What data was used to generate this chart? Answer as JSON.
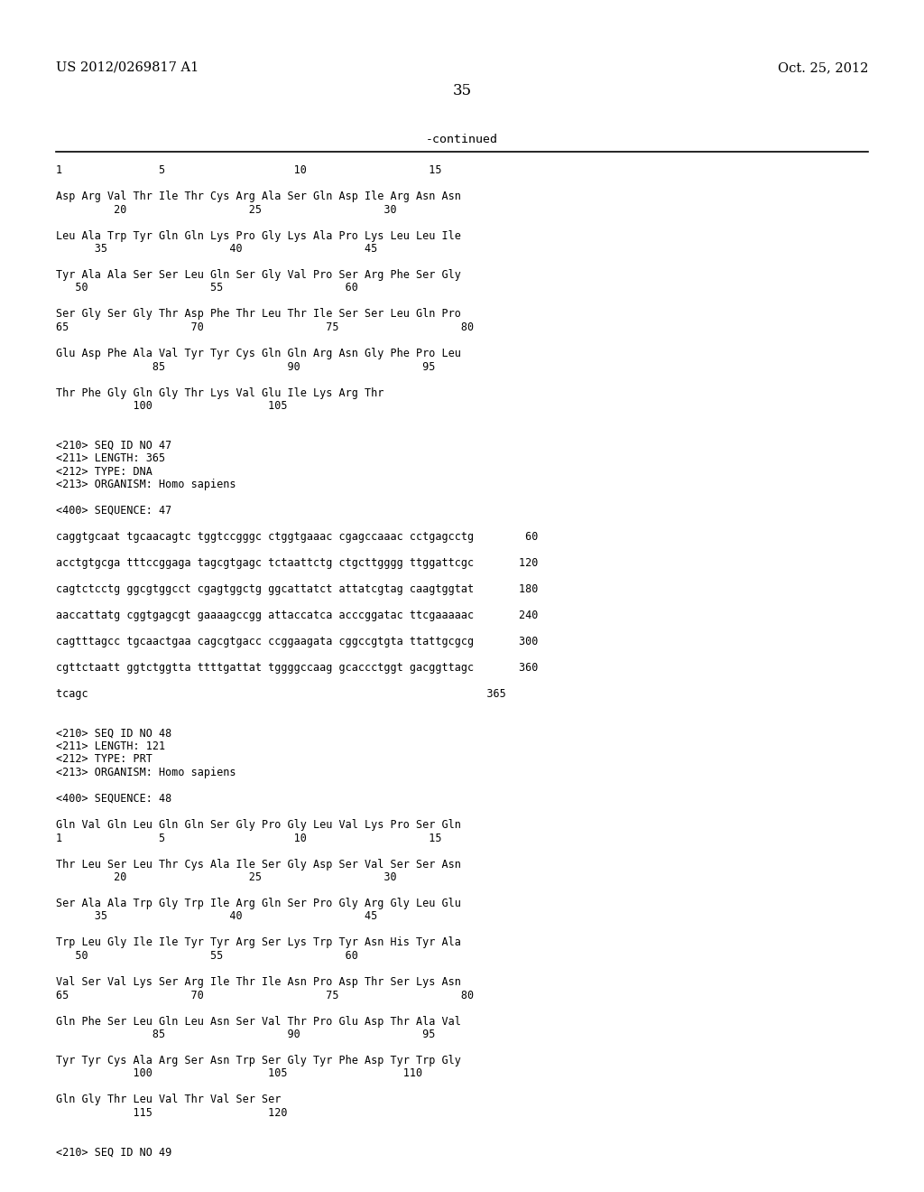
{
  "header_left": "US 2012/0269817 A1",
  "header_right": "Oct. 25, 2012",
  "page_number": "35",
  "continued_label": "-continued",
  "background_color": "#ffffff",
  "content_lines": [
    "1               5                    10                   15",
    "",
    "Asp Arg Val Thr Ile Thr Cys Arg Ala Ser Gln Asp Ile Arg Asn Asn",
    "         20                   25                   30",
    "",
    "Leu Ala Trp Tyr Gln Gln Lys Pro Gly Lys Ala Pro Lys Leu Leu Ile",
    "      35                   40                   45",
    "",
    "Tyr Ala Ala Ser Ser Leu Gln Ser Gly Val Pro Ser Arg Phe Ser Gly",
    "   50                   55                   60",
    "",
    "Ser Gly Ser Gly Thr Asp Phe Thr Leu Thr Ile Ser Ser Leu Gln Pro",
    "65                   70                   75                   80",
    "",
    "Glu Asp Phe Ala Val Tyr Tyr Cys Gln Gln Arg Asn Gly Phe Pro Leu",
    "               85                   90                   95",
    "",
    "Thr Phe Gly Gln Gly Thr Lys Val Glu Ile Lys Arg Thr",
    "            100                  105",
    "",
    "",
    "<210> SEQ ID NO 47",
    "<211> LENGTH: 365",
    "<212> TYPE: DNA",
    "<213> ORGANISM: Homo sapiens",
    "",
    "<400> SEQUENCE: 47",
    "",
    "caggtgcaat tgcaacagtc tggtccgggc ctggtgaaac cgagccaaac cctgagcctg        60",
    "",
    "acctgtgcga tttccggaga tagcgtgagc tctaattctg ctgcttgggg ttggattcgc       120",
    "",
    "cagtctcctg ggcgtggcct cgagtggctg ggcattatct attatcgtag caagtggtat       180",
    "",
    "aaccattatg cggtgagcgt gaaaagccgg attaccatca acccggatac ttcgaaaaac       240",
    "",
    "cagtttagcc tgcaactgaa cagcgtgacc ccggaagata cggccgtgta ttattgcgcg       300",
    "",
    "cgttctaatt ggtctggtta ttttgattat tggggccaag gcaccctggt gacggttagc       360",
    "",
    "tcagc                                                              365",
    "",
    "",
    "<210> SEQ ID NO 48",
    "<211> LENGTH: 121",
    "<212> TYPE: PRT",
    "<213> ORGANISM: Homo sapiens",
    "",
    "<400> SEQUENCE: 48",
    "",
    "Gln Val Gln Leu Gln Gln Ser Gly Pro Gly Leu Val Lys Pro Ser Gln",
    "1               5                    10                   15",
    "",
    "Thr Leu Ser Leu Thr Cys Ala Ile Ser Gly Asp Ser Val Ser Ser Asn",
    "         20                   25                   30",
    "",
    "Ser Ala Ala Trp Gly Trp Ile Arg Gln Ser Pro Gly Arg Gly Leu Glu",
    "      35                   40                   45",
    "",
    "Trp Leu Gly Ile Ile Tyr Tyr Arg Ser Lys Trp Tyr Asn His Tyr Ala",
    "   50                   55                   60",
    "",
    "Val Ser Val Lys Ser Arg Ile Thr Ile Asn Pro Asp Thr Ser Lys Asn",
    "65                   70                   75                   80",
    "",
    "Gln Phe Ser Leu Gln Leu Asn Ser Val Thr Pro Glu Asp Thr Ala Val",
    "               85                   90                   95",
    "",
    "Tyr Tyr Cys Ala Arg Ser Asn Trp Ser Gly Tyr Phe Asp Tyr Trp Gly",
    "            100                  105                  110",
    "",
    "Gln Gly Thr Leu Val Thr Val Ser Ser",
    "            115                  120",
    "",
    "",
    "<210> SEQ ID NO 49"
  ]
}
